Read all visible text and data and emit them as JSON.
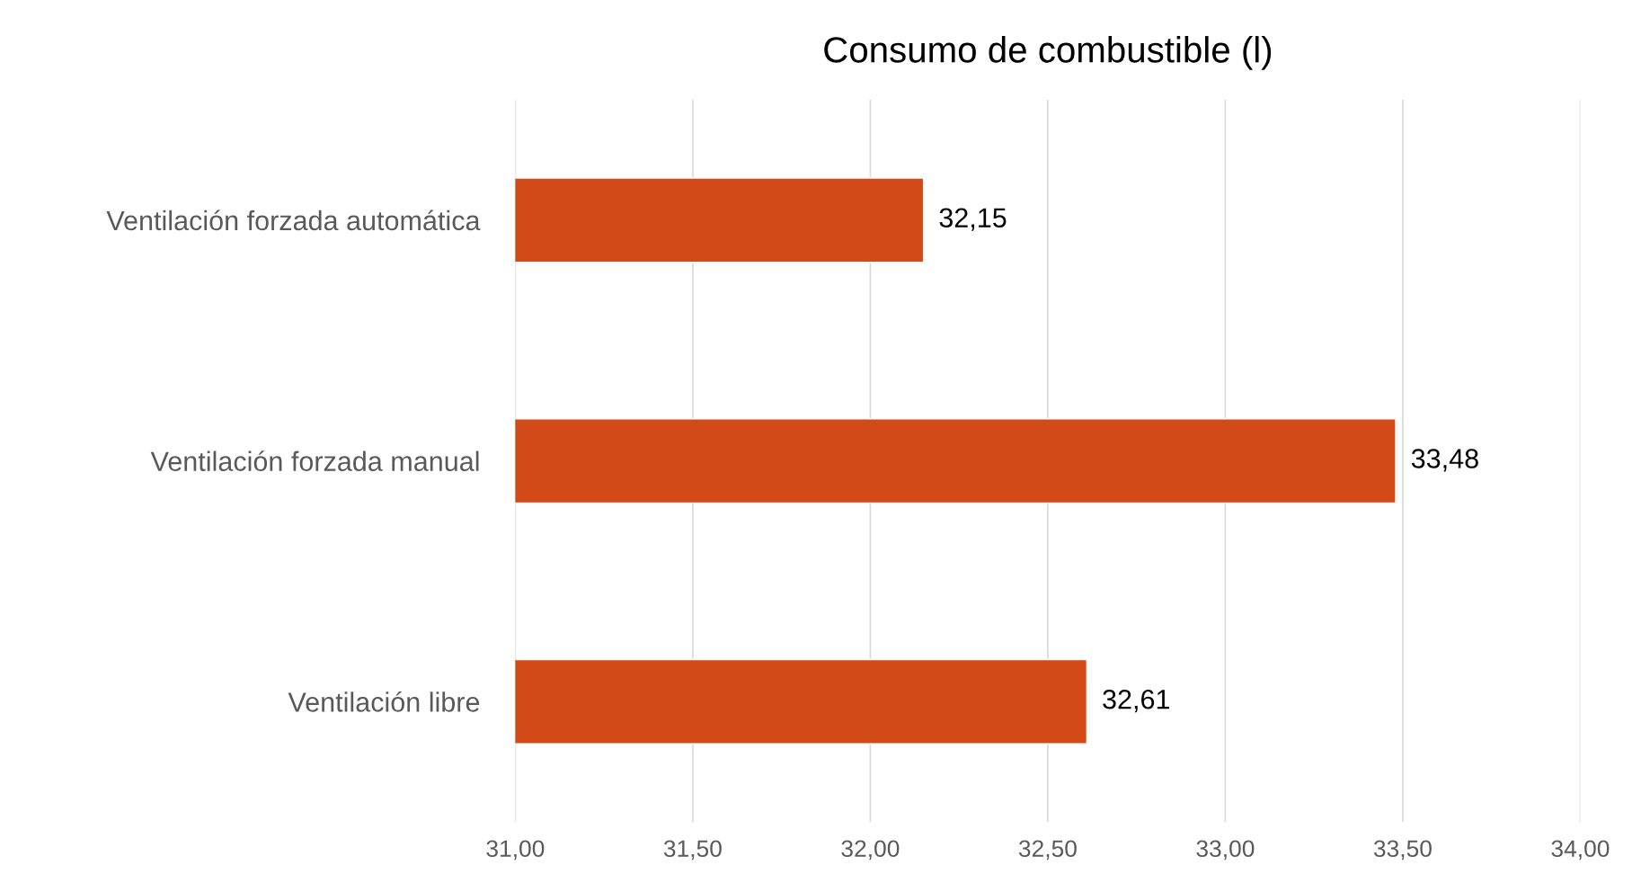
{
  "chart_data": {
    "type": "bar",
    "orientation": "horizontal",
    "title": "Consumo de combustible (l)",
    "categories": [
      "Ventilación forzada automática",
      "Ventilación forzada manual",
      "Ventilación libre"
    ],
    "values": [
      32.15,
      33.48,
      32.61
    ],
    "color": "#d24a18",
    "value_labels": [
      "32,15",
      "33,48",
      "32,61"
    ],
    "xlim": [
      31,
      34
    ],
    "xticks": [
      {
        "value": 31,
        "label": "31,00"
      },
      {
        "value": 31.5,
        "label": "31,50"
      },
      {
        "value": 32,
        "label": "32,00"
      },
      {
        "value": 32.5,
        "label": "32,50"
      },
      {
        "value": 33,
        "label": "33,00"
      },
      {
        "value": 33.5,
        "label": "33,50"
      },
      {
        "value": 34,
        "label": "34,00"
      }
    ],
    "grid": "x"
  }
}
